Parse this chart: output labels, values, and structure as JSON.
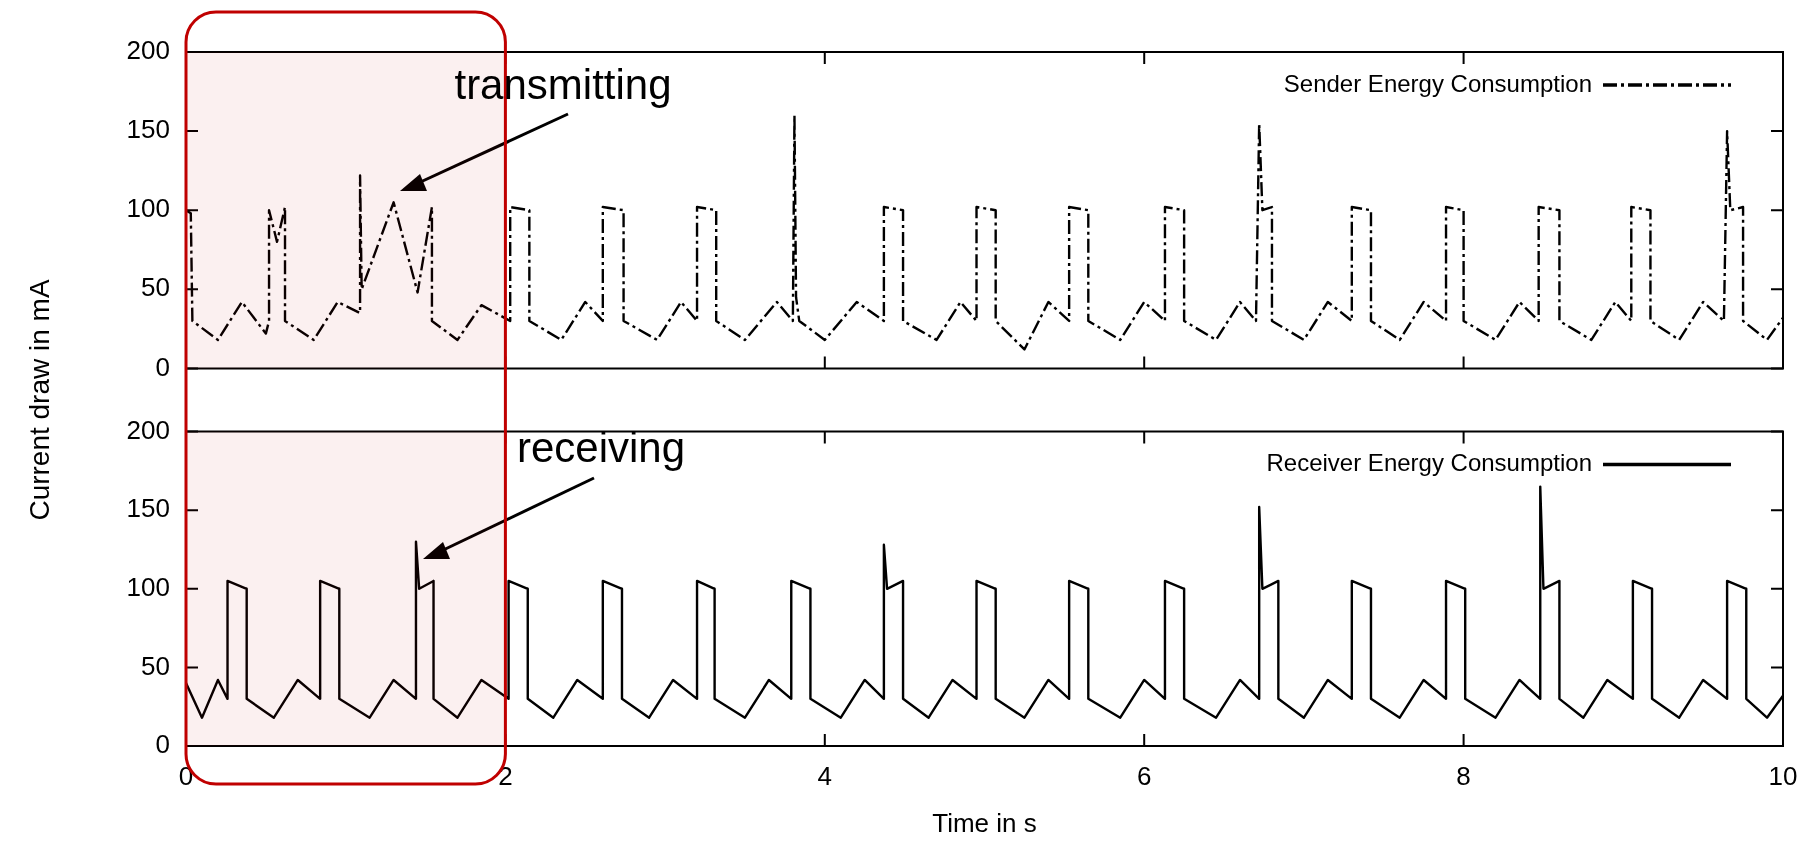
{
  "chart_data": [
    {
      "type": "line",
      "ylabel": "Current draw in mA",
      "xlim": [
        0,
        10
      ],
      "xticks": [
        0,
        2,
        4,
        6,
        8,
        10
      ],
      "ylim": [
        0,
        200
      ],
      "yticks": [
        0,
        50,
        100,
        150,
        200
      ],
      "tick_labels": "y",
      "legend": "top right",
      "marker": "none",
      "annotations": [
        "transmitting"
      ],
      "bands": [
        {
          "axis": "x",
          "from": 0,
          "to": 2,
          "color": "#c00000"
        }
      ],
      "series": [
        {
          "name": "Sender Energy Consumption",
          "color": "#000000",
          "line_style": "dashed",
          "x": [
            0,
            0.03,
            0.04,
            0.2,
            0.35,
            0.5,
            0.52,
            0.52,
            0.57,
            0.62,
            0.62,
            0.8,
            0.95,
            1.09,
            1.09,
            1.1,
            1.3,
            1.45,
            1.54,
            1.54,
            1.7,
            1.85,
            2.03,
            2.03,
            2.15,
            2.15,
            2.35,
            2.5,
            2.61,
            2.61,
            2.74,
            2.74,
            2.95,
            3.1,
            3.2,
            3.2,
            3.32,
            3.32,
            3.5,
            3.7,
            3.8,
            3.81,
            3.82,
            3.84,
            4.0,
            4.2,
            4.37,
            4.37,
            4.49,
            4.49,
            4.7,
            4.85,
            4.95,
            4.95,
            5.07,
            5.07,
            5.25,
            5.4,
            5.53,
            5.53,
            5.65,
            5.65,
            5.85,
            6.0,
            6.13,
            6.13,
            6.25,
            6.25,
            6.45,
            6.6,
            6.7,
            6.72,
            6.74,
            6.8,
            6.8,
            7.0,
            7.15,
            7.3,
            7.3,
            7.42,
            7.42,
            7.6,
            7.75,
            7.89,
            7.89,
            8.0,
            8.0,
            8.2,
            8.35,
            8.47,
            8.47,
            8.6,
            8.6,
            8.8,
            8.95,
            9.05,
            9.05,
            9.17,
            9.17,
            9.35,
            9.5,
            9.63,
            9.65,
            9.67,
            9.75,
            9.75,
            9.9,
            10
          ],
          "values": [
            100,
            98,
            30,
            18,
            42,
            22,
            30,
            100,
            80,
            102,
            30,
            18,
            42,
            35,
            122,
            50,
            105,
            48,
            102,
            30,
            18,
            40,
            30,
            102,
            100,
            30,
            18,
            42,
            30,
            102,
            100,
            30,
            18,
            42,
            30,
            102,
            100,
            30,
            18,
            42,
            30,
            160,
            45,
            30,
            18,
            42,
            30,
            102,
            100,
            30,
            18,
            42,
            30,
            102,
            100,
            30,
            12,
            42,
            30,
            102,
            100,
            30,
            18,
            42,
            30,
            102,
            100,
            30,
            18,
            42,
            30,
            155,
            100,
            102,
            30,
            18,
            42,
            30,
            102,
            100,
            30,
            18,
            42,
            30,
            102,
            100,
            30,
            18,
            42,
            30,
            102,
            100,
            30,
            18,
            42,
            30,
            102,
            100,
            30,
            18,
            42,
            30,
            150,
            100,
            102,
            30,
            18,
            32
          ]
        }
      ]
    },
    {
      "type": "line",
      "xlabel": "Time in s",
      "xlim": [
        0,
        10
      ],
      "xticks": [
        0,
        2,
        4,
        6,
        8,
        10
      ],
      "ylim": [
        0,
        200
      ],
      "yticks": [
        0,
        50,
        100,
        150,
        200
      ],
      "legend": "top right",
      "marker": "none",
      "annotations": [
        "receiving"
      ],
      "bands": [
        {
          "axis": "x",
          "from": 0,
          "to": 2,
          "color": "#c00000"
        }
      ],
      "series": [
        {
          "name": "Receiver Energy Consumption",
          "color": "#000000",
          "line_style": "solid",
          "x": [
            0,
            0.1,
            0.2,
            0.26,
            0.26,
            0.38,
            0.38,
            0.55,
            0.7,
            0.84,
            0.84,
            0.96,
            0.96,
            1.15,
            1.3,
            1.44,
            1.44,
            1.46,
            1.55,
            1.55,
            1.7,
            1.85,
            2.02,
            2.02,
            2.14,
            2.14,
            2.3,
            2.45,
            2.61,
            2.61,
            2.73,
            2.73,
            2.9,
            3.05,
            3.2,
            3.2,
            3.31,
            3.31,
            3.5,
            3.65,
            3.79,
            3.79,
            3.91,
            3.91,
            4.1,
            4.25,
            4.37,
            4.37,
            4.39,
            4.49,
            4.49,
            4.65,
            4.8,
            4.95,
            4.95,
            5.07,
            5.07,
            5.25,
            5.4,
            5.53,
            5.53,
            5.65,
            5.65,
            5.85,
            6.0,
            6.13,
            6.13,
            6.25,
            6.25,
            6.45,
            6.6,
            6.72,
            6.72,
            6.74,
            6.84,
            6.84,
            7.0,
            7.15,
            7.3,
            7.3,
            7.42,
            7.42,
            7.6,
            7.75,
            7.89,
            7.89,
            8.01,
            8.01,
            8.2,
            8.35,
            8.48,
            8.48,
            8.5,
            8.6,
            8.6,
            8.75,
            8.9,
            9.06,
            9.06,
            9.18,
            9.18,
            9.35,
            9.5,
            9.65,
            9.65,
            9.77,
            9.77,
            9.9,
            10
          ],
          "values": [
            40,
            18,
            42,
            30,
            105,
            100,
            30,
            18,
            42,
            30,
            105,
            100,
            30,
            18,
            42,
            30,
            130,
            100,
            105,
            30,
            18,
            42,
            30,
            105,
            100,
            30,
            18,
            42,
            30,
            105,
            100,
            30,
            18,
            42,
            30,
            105,
            100,
            30,
            18,
            42,
            30,
            105,
            100,
            30,
            18,
            42,
            30,
            128,
            100,
            105,
            30,
            18,
            42,
            30,
            105,
            100,
            30,
            18,
            42,
            30,
            105,
            100,
            30,
            18,
            42,
            30,
            105,
            100,
            30,
            18,
            42,
            30,
            152,
            100,
            105,
            30,
            18,
            42,
            30,
            105,
            100,
            30,
            18,
            42,
            30,
            105,
            100,
            30,
            18,
            42,
            30,
            165,
            100,
            105,
            30,
            18,
            42,
            30,
            105,
            100,
            30,
            18,
            42,
            30,
            105,
            100,
            30,
            18,
            32
          ]
        }
      ]
    }
  ]
}
